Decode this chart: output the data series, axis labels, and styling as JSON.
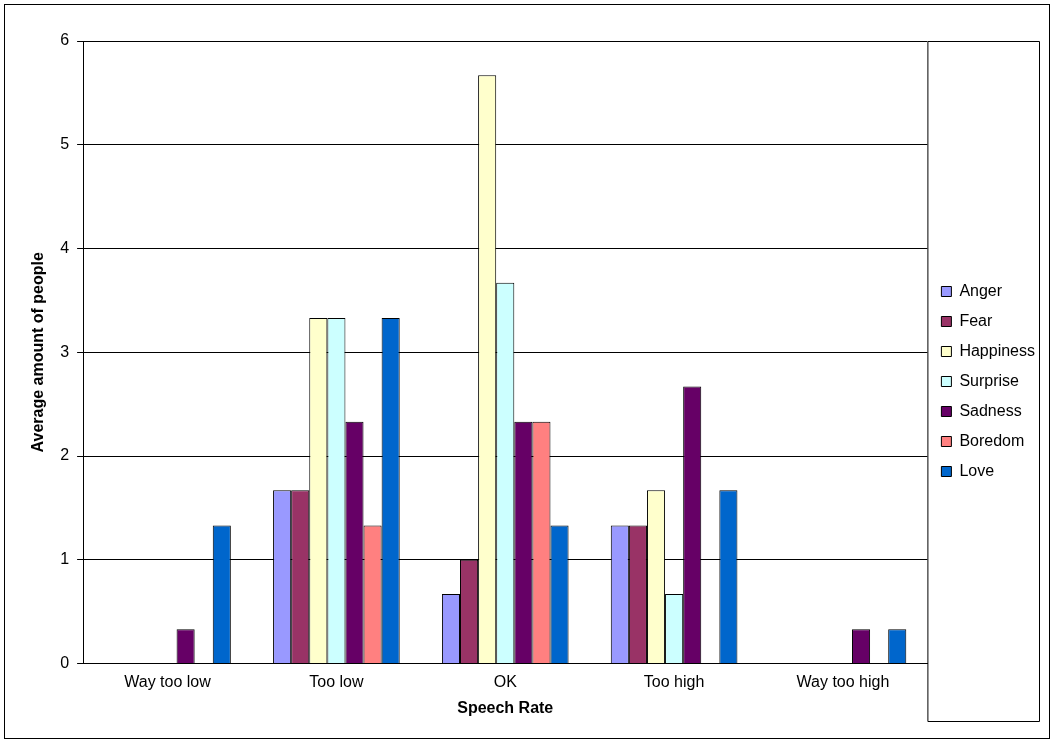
{
  "chart_data": {
    "type": "bar",
    "xlabel": "Speech Rate",
    "ylabel": "Average amount of people",
    "categories": [
      "Way too low",
      "Too low",
      "OK",
      "Too high",
      "Way too high"
    ],
    "series": [
      {
        "name": "Anger",
        "color": "#9999ff",
        "values": [
          0,
          1.67,
          0.67,
          1.33,
          0
        ]
      },
      {
        "name": "Fear",
        "color": "#993366",
        "values": [
          0,
          1.67,
          1,
          1.33,
          0
        ]
      },
      {
        "name": "Happiness",
        "color": "#ffffcc",
        "values": [
          0,
          3.33,
          5.67,
          1.67,
          0
        ]
      },
      {
        "name": "Surprise",
        "color": "#ccffff",
        "values": [
          0,
          3.33,
          3.67,
          0.67,
          0
        ]
      },
      {
        "name": "Sadness",
        "color": "#660066",
        "values": [
          0.33,
          2.33,
          2.33,
          2.67,
          0.33
        ]
      },
      {
        "name": "Boredom",
        "color": "#ff8080",
        "values": [
          0,
          1.33,
          2.33,
          0,
          0
        ]
      },
      {
        "name": "Love",
        "color": "#0066cc",
        "values": [
          1.33,
          3.33,
          1.33,
          1.67,
          0.33
        ]
      }
    ],
    "ylim": [
      0,
      6
    ],
    "yticks": [
      0,
      1,
      2,
      3,
      4,
      5,
      6
    ],
    "grid": "y",
    "legend": "right"
  }
}
